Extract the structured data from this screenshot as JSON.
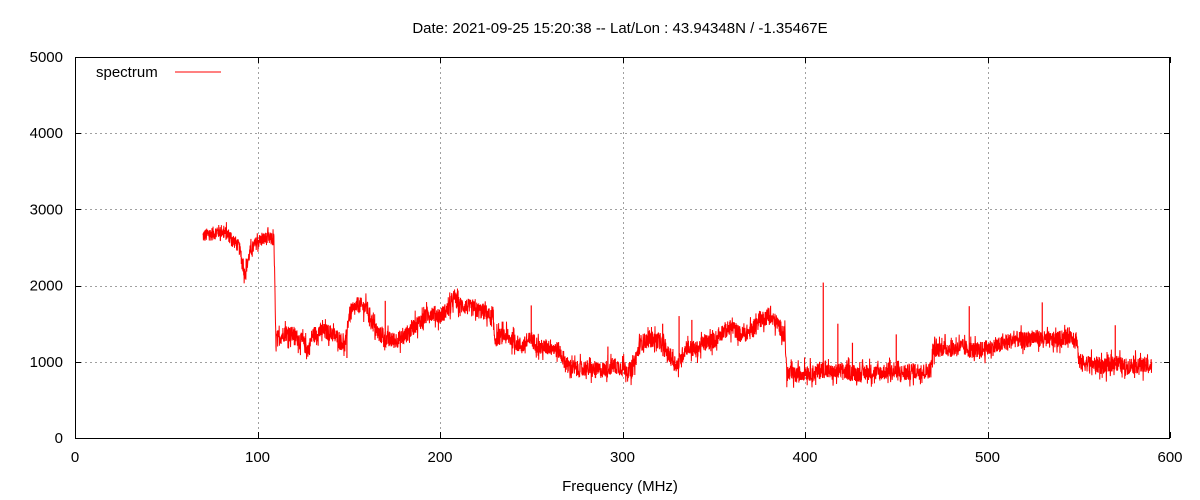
{
  "chart_data": {
    "type": "line",
    "title": "Date: 2021-09-25 15:20:38  --  Lat/Lon : 43.94348N / -1.35467E",
    "xlabel": "Frequency (MHz)",
    "ylabel": "",
    "xlim": [
      0,
      600
    ],
    "ylim": [
      0,
      5000
    ],
    "xticks": [
      0,
      100,
      200,
      300,
      400,
      500,
      600
    ],
    "yticks": [
      0,
      1000,
      2000,
      3000,
      4000,
      5000
    ],
    "grid": true,
    "legend_position": "top-left",
    "series": [
      {
        "name": "spectrum",
        "color": "#ff0000",
        "x": [
          70,
          75,
          80,
          85,
          90,
          93,
          96,
          100,
          105,
          109,
          110,
          112,
          115,
          120,
          125,
          128,
          130,
          135,
          140,
          145,
          148,
          150,
          155,
          160,
          165,
          170,
          175,
          180,
          185,
          190,
          195,
          200,
          205,
          208,
          210,
          215,
          220,
          225,
          229,
          230,
          235,
          240,
          245,
          250,
          255,
          260,
          265,
          270,
          275,
          280,
          285,
          290,
          295,
          300,
          305,
          310,
          315,
          320,
          325,
          330,
          335,
          340,
          345,
          350,
          355,
          360,
          365,
          370,
          375,
          380,
          385,
          389,
          390,
          395,
          400,
          405,
          410,
          415,
          420,
          425,
          430,
          435,
          440,
          445,
          450,
          455,
          460,
          465,
          469,
          470,
          475,
          480,
          485,
          490,
          495,
          500,
          505,
          510,
          515,
          520,
          525,
          530,
          535,
          540,
          545,
          549,
          550,
          555,
          560,
          565,
          570,
          575,
          580,
          585,
          590
        ],
        "y": [
          2650,
          2680,
          2720,
          2650,
          2500,
          2150,
          2450,
          2580,
          2620,
          2600,
          1300,
          1320,
          1380,
          1350,
          1250,
          1150,
          1350,
          1400,
          1380,
          1300,
          1200,
          1600,
          1750,
          1700,
          1400,
          1300,
          1280,
          1320,
          1450,
          1550,
          1650,
          1600,
          1700,
          1850,
          1750,
          1720,
          1680,
          1650,
          1550,
          1300,
          1350,
          1280,
          1200,
          1300,
          1180,
          1200,
          1150,
          950,
          900,
          920,
          880,
          900,
          950,
          920,
          880,
          1250,
          1300,
          1280,
          1100,
          950,
          1200,
          1150,
          1250,
          1280,
          1400,
          1450,
          1350,
          1400,
          1550,
          1600,
          1500,
          1350,
          850,
          820,
          870,
          850,
          900,
          850,
          880,
          860,
          840,
          870,
          850,
          880,
          860,
          850,
          880,
          870,
          900,
          1150,
          1180,
          1170,
          1200,
          1160,
          1150,
          1180,
          1200,
          1250,
          1300,
          1280,
          1320,
          1300,
          1280,
          1300,
          1350,
          1300,
          1000,
          980,
          960,
          930,
          1000,
          930,
          960,
          950,
          940
        ],
        "spikes": [
          {
            "x": 149,
            "y": 1050
          },
          {
            "x": 170,
            "y": 1800
          },
          {
            "x": 250,
            "y": 1740
          },
          {
            "x": 292,
            "y": 1200
          },
          {
            "x": 305,
            "y": 780
          },
          {
            "x": 322,
            "y": 1500
          },
          {
            "x": 331,
            "y": 1600
          },
          {
            "x": 338,
            "y": 1550
          },
          {
            "x": 391,
            "y": 780
          },
          {
            "x": 408,
            "y": 1000
          },
          {
            "x": 410,
            "y": 2040
          },
          {
            "x": 411,
            "y": 1000
          },
          {
            "x": 418,
            "y": 1500
          },
          {
            "x": 426,
            "y": 1250
          },
          {
            "x": 450,
            "y": 1360
          },
          {
            "x": 490,
            "y": 1730
          },
          {
            "x": 530,
            "y": 1780
          },
          {
            "x": 552,
            "y": 870
          },
          {
            "x": 570,
            "y": 1480
          }
        ]
      }
    ]
  }
}
